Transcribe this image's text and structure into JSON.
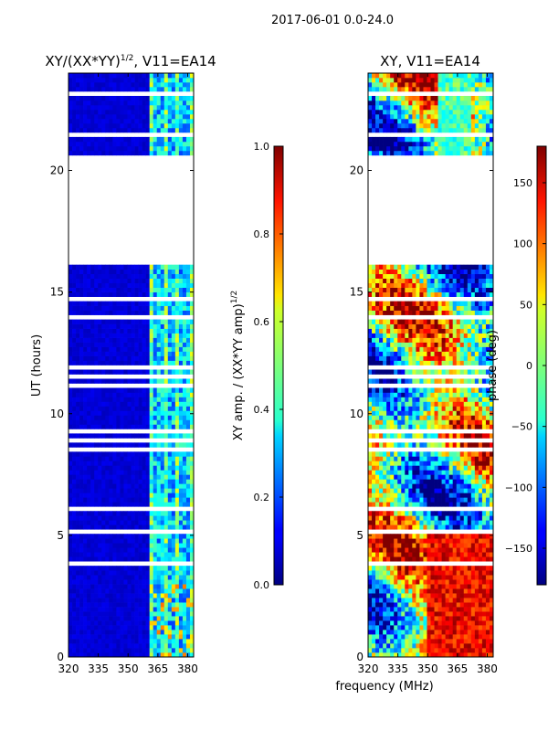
{
  "suptitle": "2017-06-01 0.0-24.0",
  "shared_xlabel": "frequency (MHz)",
  "chart_data": [
    {
      "type": "heatmap",
      "title_main": "XY/(XX*YY)",
      "title_sup": "1/2",
      "title_rest": ", V11=EA14",
      "xlabel": "",
      "ylabel": "UT (hours)",
      "xlim": [
        320,
        383
      ],
      "ylim": [
        0,
        24
      ],
      "xticks": [
        320,
        335,
        350,
        365,
        380
      ],
      "yticks": [
        0,
        5,
        10,
        15,
        20
      ],
      "colorbar": {
        "label_main": "XY amp. / (XX*YY amp)",
        "label_sup": "1/2",
        "range": [
          0.0,
          1.0
        ],
        "ticks": [
          "0.0",
          "0.2",
          "0.4",
          "0.6",
          "0.8",
          "1.0"
        ],
        "colormap": "jet"
      },
      "data_gaps_hours": [
        [
          16.4,
          20.6
        ]
      ],
      "notes": "low amplitude (~0.05) below 361 MHz; elevated (0.2-0.6) in 362-383 MHz band"
    },
    {
      "type": "heatmap",
      "title_main": "XY, V11=EA14",
      "title_sup": "",
      "title_rest": "",
      "xlabel": "",
      "ylabel": "",
      "xlim": [
        320,
        383
      ],
      "ylim": [
        0,
        24
      ],
      "xticks": [
        320,
        335,
        350,
        365,
        380
      ],
      "yticks": [
        0,
        5,
        10,
        15,
        20
      ],
      "colorbar": {
        "label_main": "phase (deg)",
        "label_sup": "",
        "range": [
          -180,
          180
        ],
        "ticks": [
          "−150",
          "−100",
          "−50",
          "0",
          "50",
          "100",
          "150"
        ],
        "tick_values": [
          -150,
          -100,
          -50,
          0,
          50,
          100,
          150
        ],
        "colormap": "jet"
      },
      "data_gaps_hours": [
        [
          16.2,
          20.6
        ]
      ],
      "notes": "phase varies widely; mostly red/orange above 350 MHz at 0-5 h, mixed elsewhere"
    }
  ]
}
